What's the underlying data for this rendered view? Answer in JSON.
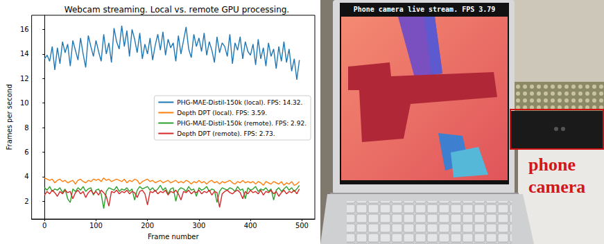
{
  "chart_data": {
    "type": "line",
    "title": "Webcam streaming. Local vs. remote GPU processing.",
    "x_label": "Frame number",
    "y_label": "Frames per second",
    "x": [
      0,
      5,
      10,
      15,
      20,
      25,
      30,
      35,
      40,
      45,
      50,
      55,
      60,
      65,
      70,
      75,
      80,
      85,
      90,
      95,
      100,
      105,
      110,
      115,
      120,
      125,
      130,
      135,
      140,
      145,
      150,
      155,
      160,
      165,
      170,
      175,
      180,
      185,
      190,
      195,
      200,
      205,
      210,
      215,
      220,
      225,
      230,
      235,
      240,
      245,
      250,
      255,
      260,
      265,
      270,
      275,
      280,
      285,
      290,
      295,
      300,
      305,
      310,
      315,
      320,
      325,
      330,
      335,
      340,
      345,
      350,
      355,
      360,
      365,
      370,
      375,
      380,
      385,
      390,
      395,
      400,
      405,
      410,
      415,
      420,
      425,
      430,
      435,
      440,
      445,
      450,
      455,
      460,
      465,
      470,
      475,
      480,
      485,
      490,
      495
    ],
    "series": [
      {
        "name": "PHG-MAE-Distil-150k (local). FPS: 14.32.",
        "color": "#1f77b4",
        "values": [
          13.6,
          13.9,
          13.4,
          14.6,
          12.7,
          14.5,
          13.2,
          15.0,
          14.1,
          14.8,
          13.0,
          15.1,
          14.3,
          13.5,
          15.3,
          14.0,
          12.9,
          15.5,
          14.6,
          13.8,
          15.1,
          14.2,
          13.4,
          15.6,
          14.0,
          14.9,
          13.3,
          16.1,
          15.0,
          14.4,
          16.3,
          14.6,
          15.9,
          13.8,
          16.0,
          15.2,
          14.1,
          15.7,
          13.6,
          14.8,
          14.0,
          15.3,
          13.5,
          14.7,
          15.6,
          14.3,
          15.8,
          13.9,
          15.2,
          14.5,
          14.9,
          13.4,
          15.5,
          14.0,
          15.1,
          16.2,
          14.4,
          13.7,
          15.6,
          14.6,
          15.3,
          14.2,
          15.7,
          13.9,
          15.0,
          14.3,
          13.3,
          15.4,
          14.1,
          14.9,
          14.6,
          13.8,
          15.6,
          13.2,
          14.9,
          14.3,
          15.4,
          13.6,
          15.0,
          14.2,
          13.9,
          14.8,
          13.1,
          15.2,
          13.6,
          14.5,
          13.0,
          14.9,
          13.8,
          14.4,
          12.8,
          14.6,
          13.4,
          15.0,
          13.3,
          14.4,
          12.6,
          13.6,
          11.9,
          13.5
        ]
      },
      {
        "name": "Depth DPT (local). FPS: 3.59.",
        "color": "#ff7f0e",
        "values": [
          3.9,
          3.8,
          3.7,
          3.8,
          3.5,
          3.7,
          3.8,
          3.6,
          3.7,
          3.5,
          3.6,
          3.7,
          3.4,
          3.7,
          3.8,
          3.6,
          3.5,
          3.7,
          3.6,
          3.8,
          3.7,
          3.8,
          3.6,
          3.9,
          3.7,
          3.8,
          3.6,
          3.7,
          3.8,
          3.7,
          3.6,
          3.8,
          3.5,
          3.7,
          3.6,
          3.8,
          3.7,
          3.4,
          3.6,
          3.7,
          3.8,
          3.6,
          3.7,
          3.5,
          3.6,
          3.7,
          3.5,
          3.6,
          3.7,
          3.5,
          3.6,
          3.7,
          3.5,
          3.6,
          3.5,
          3.7,
          3.6,
          3.4,
          3.6,
          3.5,
          3.7,
          3.5,
          3.6,
          3.4,
          3.6,
          3.7,
          3.5,
          3.6,
          3.4,
          3.6,
          3.5,
          3.6,
          3.7,
          3.5,
          3.4,
          3.6,
          3.5,
          3.7,
          3.5,
          3.6,
          3.5,
          3.6,
          3.4,
          3.6,
          3.5,
          3.3,
          3.6,
          3.5,
          3.4,
          3.6,
          3.5,
          3.4,
          3.6,
          3.3,
          3.5,
          3.4,
          3.6,
          3.3,
          3.4,
          3.6
        ]
      },
      {
        "name": "PHG-MAE-Distil-150k (remote). FPS: 2.92.",
        "color": "#2ca02c",
        "values": [
          3.1,
          2.9,
          3.2,
          2.8,
          3.0,
          2.9,
          3.1,
          2.7,
          3.0,
          2.2,
          1.9,
          3.0,
          2.8,
          3.1,
          2.9,
          3.2,
          2.8,
          3.0,
          3.1,
          2.5,
          2.9,
          3.0,
          2.6,
          1.4,
          2.8,
          3.1,
          3.0,
          2.9,
          3.2,
          2.8,
          3.0,
          2.9,
          3.1,
          2.8,
          3.0,
          2.1,
          2.9,
          3.2,
          3.0,
          3.1,
          3.2,
          2.9,
          3.1,
          2.8,
          3.0,
          3.3,
          2.9,
          3.1,
          2.6,
          3.0,
          3.1,
          2.0,
          2.9,
          3.1,
          3.0,
          2.8,
          3.2,
          2.9,
          3.0,
          2.4,
          3.1,
          2.9,
          3.0,
          3.2,
          2.8,
          3.0,
          2.9,
          1.9,
          2.8,
          3.1,
          3.0,
          2.9,
          3.1,
          3.0,
          2.8,
          3.2,
          2.9,
          3.0,
          2.2,
          3.1,
          2.9,
          3.0,
          3.2,
          2.8,
          3.0,
          2.9,
          3.1,
          2.8,
          3.0,
          2.1,
          2.9,
          3.1,
          2.8,
          3.0,
          3.2,
          2.9,
          3.1,
          2.8,
          3.0,
          3.3
        ]
      },
      {
        "name": "Depth DPT (remote). FPS: 2.73.",
        "color": "#d62728",
        "values": [
          2.5,
          2.8,
          2.6,
          2.9,
          2.7,
          2.4,
          2.8,
          2.6,
          2.9,
          2.7,
          2.8,
          2.2,
          2.7,
          2.9,
          2.6,
          2.8,
          2.3,
          2.7,
          2.9,
          2.6,
          2.8,
          2.5,
          2.9,
          2.7,
          2.4,
          1.6,
          2.8,
          2.7,
          2.9,
          2.6,
          2.8,
          2.7,
          2.9,
          2.6,
          2.8,
          2.7,
          2.3,
          2.8,
          2.9,
          2.6,
          1.7,
          2.8,
          2.7,
          2.9,
          2.6,
          2.8,
          2.7,
          2.9,
          2.5,
          2.8,
          2.7,
          2.9,
          2.6,
          2.1,
          2.8,
          2.7,
          2.9,
          2.6,
          2.8,
          2.7,
          2.9,
          2.6,
          2.8,
          2.7,
          2.9,
          2.5,
          2.8,
          2.7,
          1.5,
          2.6,
          2.8,
          2.9,
          2.7,
          2.6,
          2.8,
          2.9,
          2.7,
          2.2,
          2.8,
          2.6,
          2.9,
          2.7,
          2.8,
          2.6,
          2.9,
          2.5,
          2.8,
          2.7,
          2.9,
          2.6,
          2.8,
          2.4,
          2.7,
          2.9,
          2.6,
          2.8,
          2.7,
          2.9,
          2.6,
          3.0
        ]
      }
    ],
    "xlim": [
      -25,
      525
    ],
    "xticks": [
      0,
      100,
      200,
      300,
      400,
      500
    ],
    "ylim": [
      0.55,
      17.15
    ],
    "yticks": [
      2,
      4,
      6,
      8,
      10,
      12,
      14,
      16
    ],
    "grid": false,
    "legend": "right"
  },
  "photo": {
    "screen_text": "Phone camera live stream. FPS 3.79",
    "label": [
      "phone",
      "camera"
    ]
  }
}
